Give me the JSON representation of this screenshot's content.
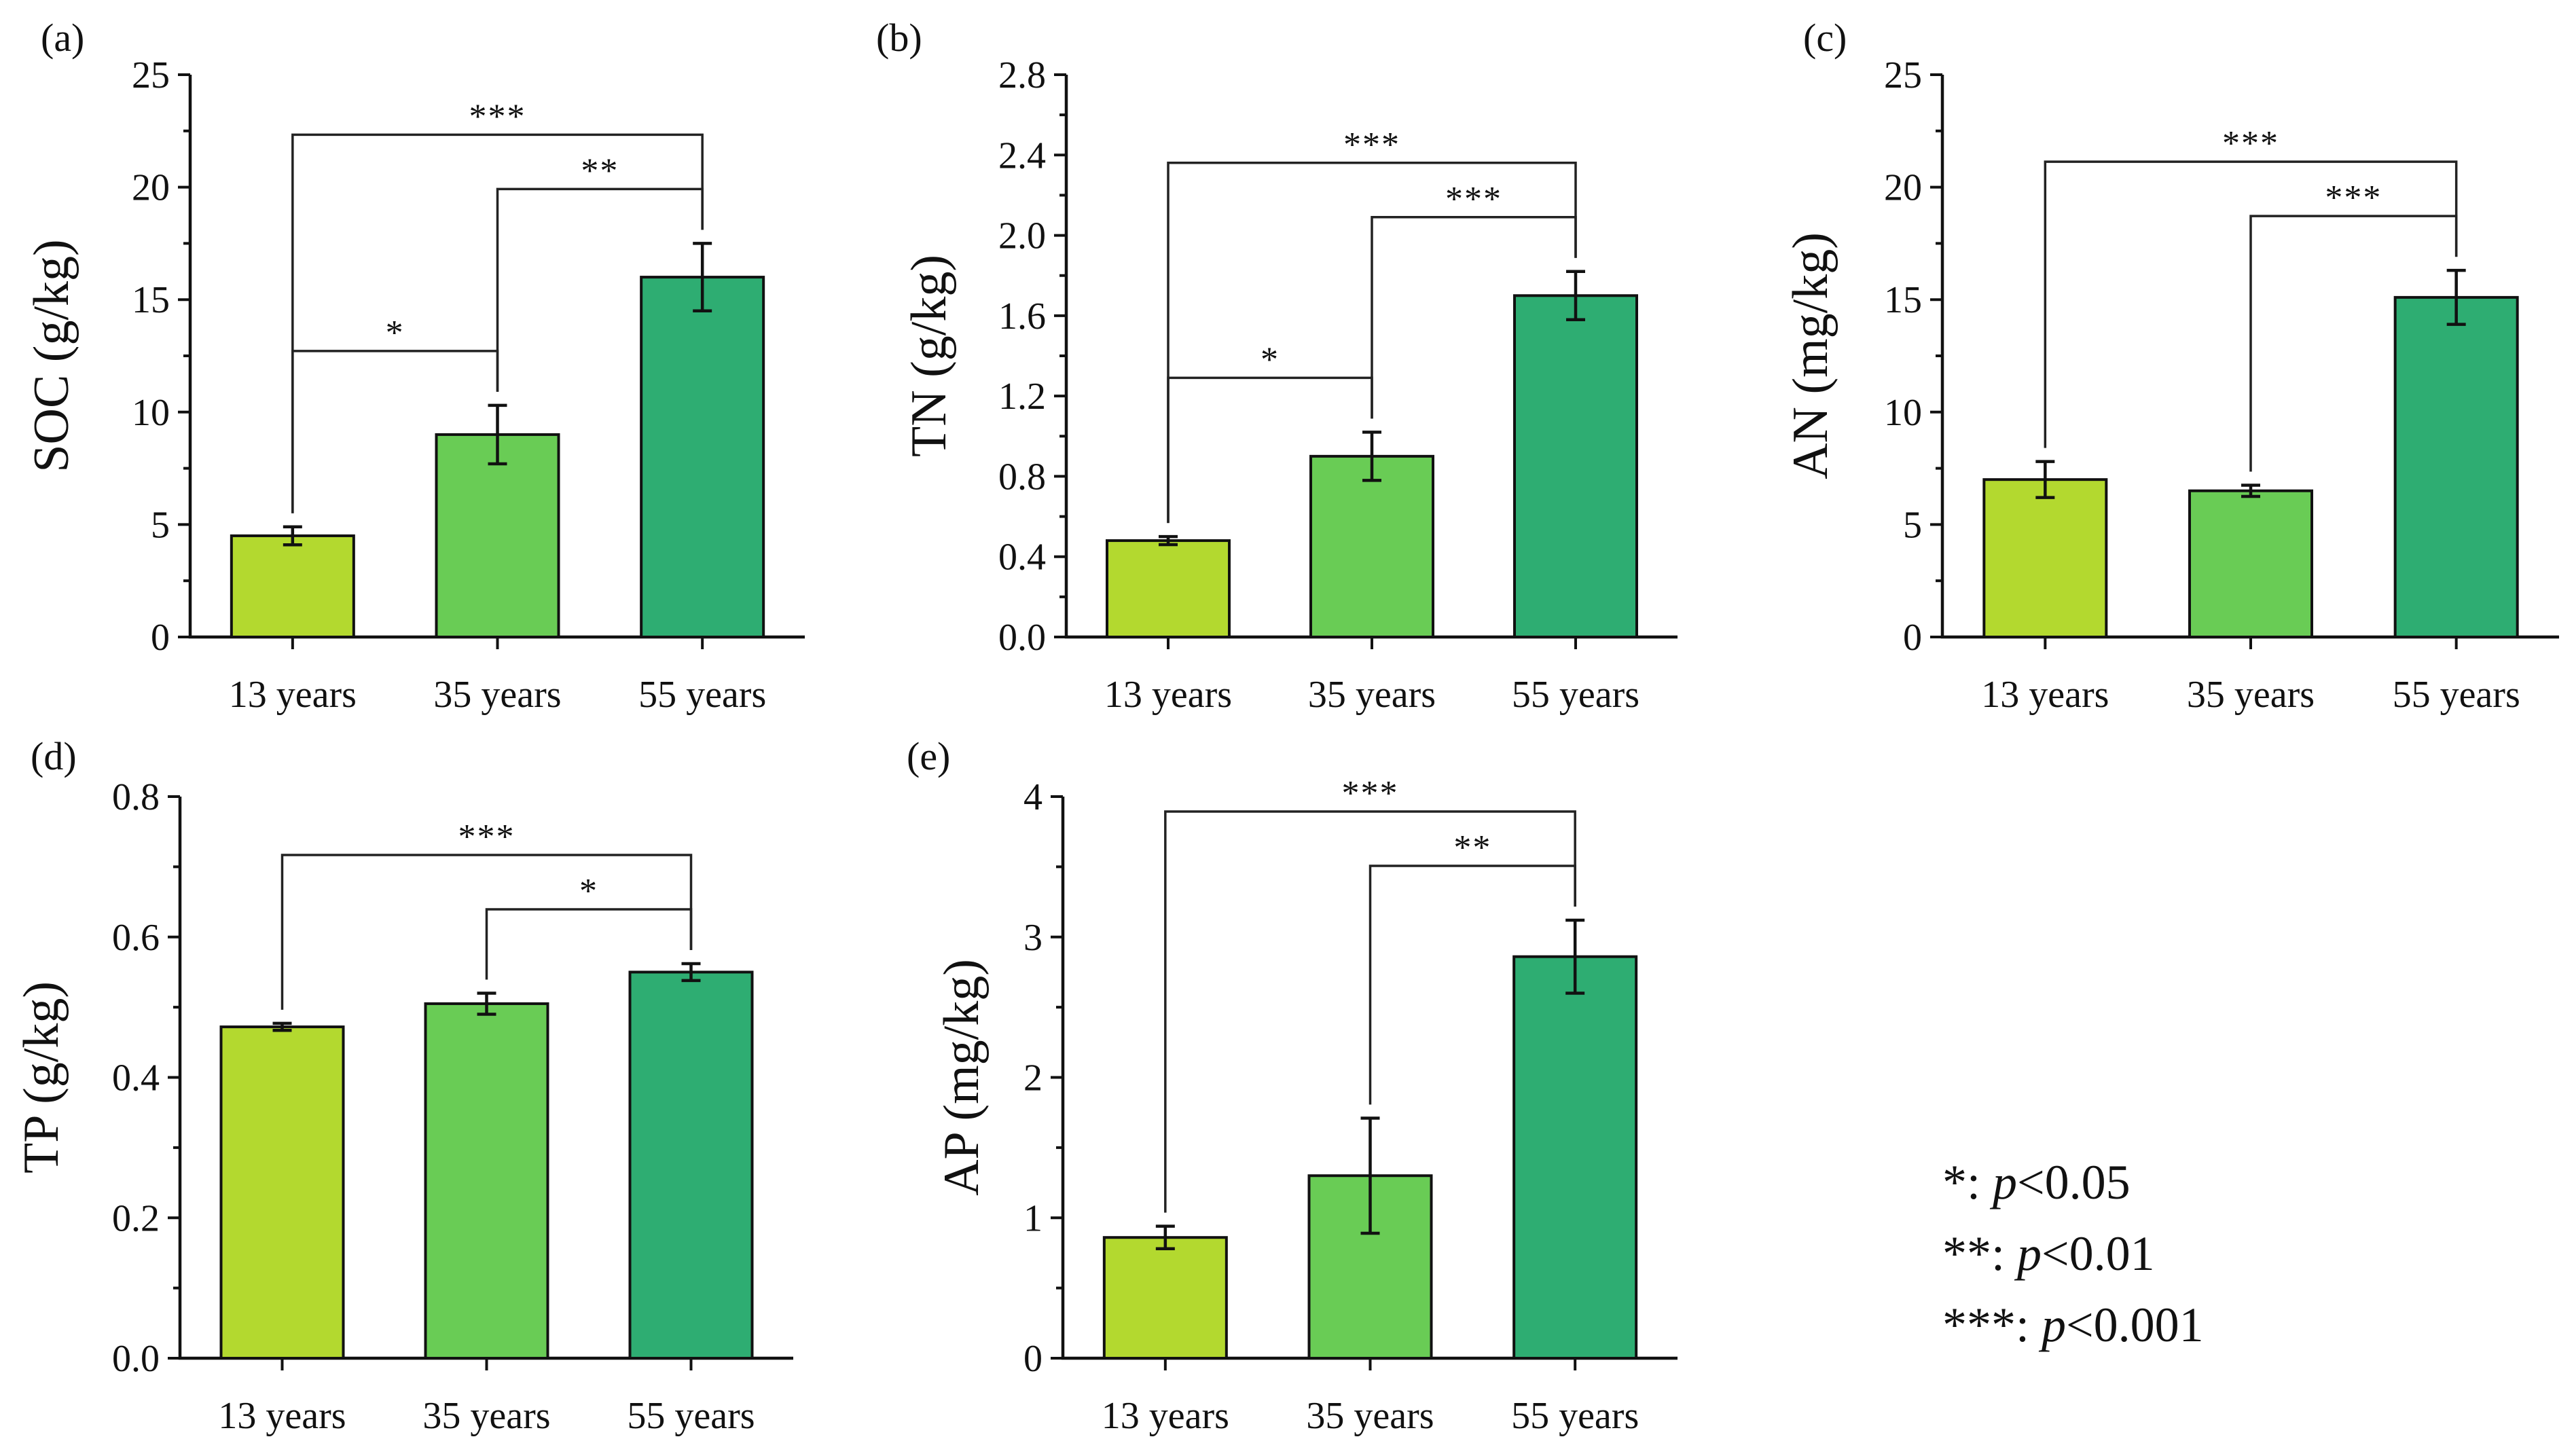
{
  "chart_data": [
    {
      "type": "bar",
      "panel": "(a)",
      "ylabel": "SOC (g/kg)",
      "categories": [
        "13 years",
        "35 years",
        "55 years"
      ],
      "values": [
        4.5,
        9.0,
        16.0
      ],
      "errors": [
        0.4,
        1.3,
        1.5
      ],
      "ylim": [
        0,
        25
      ],
      "yticks": [
        "0",
        "5",
        "10",
        "15",
        "20",
        "25"
      ],
      "brackets": [
        {
          "from": 0,
          "to": 2,
          "label": "***"
        },
        {
          "from": 1,
          "to": 2,
          "label": "**"
        },
        {
          "from": 0,
          "to": 1,
          "label": "*"
        }
      ]
    },
    {
      "type": "bar",
      "panel": "(b)",
      "ylabel": "TN (g/kg)",
      "categories": [
        "13 years",
        "35 years",
        "55 years"
      ],
      "values": [
        0.48,
        0.9,
        1.7
      ],
      "errors": [
        0.02,
        0.12,
        0.12
      ],
      "ylim": [
        0,
        2.8
      ],
      "yticks": [
        "0.0",
        "0.4",
        "0.8",
        "1.2",
        "1.6",
        "2.0",
        "2.4",
        "2.8"
      ],
      "brackets": [
        {
          "from": 0,
          "to": 2,
          "label": "***"
        },
        {
          "from": 1,
          "to": 2,
          "label": "***"
        },
        {
          "from": 0,
          "to": 1,
          "label": "*"
        }
      ]
    },
    {
      "type": "bar",
      "panel": "(c)",
      "ylabel": "AN (mg/kg)",
      "categories": [
        "13 years",
        "35 years",
        "55 years"
      ],
      "values": [
        7.0,
        6.5,
        15.1
      ],
      "errors": [
        0.8,
        0.25,
        1.2
      ],
      "ylim": [
        0,
        25
      ],
      "yticks": [
        "0",
        "5",
        "10",
        "15",
        "20",
        "25"
      ],
      "brackets": [
        {
          "from": 0,
          "to": 2,
          "label": "***"
        },
        {
          "from": 1,
          "to": 2,
          "label": "***"
        }
      ]
    },
    {
      "type": "bar",
      "panel": "(d)",
      "ylabel": "TP (g/kg)",
      "categories": [
        "13 years",
        "35 years",
        "55 years"
      ],
      "values": [
        0.472,
        0.505,
        0.55
      ],
      "errors": [
        0.005,
        0.015,
        0.012
      ],
      "ylim": [
        0,
        0.8
      ],
      "yticks": [
        "0.0",
        "0.2",
        "0.4",
        "0.6",
        "0.8"
      ],
      "brackets": [
        {
          "from": 0,
          "to": 2,
          "label": "***"
        },
        {
          "from": 1,
          "to": 2,
          "label": "*"
        }
      ]
    },
    {
      "type": "bar",
      "panel": "(e)",
      "ylabel": "AP (mg/kg)",
      "categories": [
        "13 years",
        "35 years",
        "55 years"
      ],
      "values": [
        0.86,
        1.3,
        2.86
      ],
      "errors": [
        0.08,
        0.41,
        0.26
      ],
      "ylim": [
        0,
        4
      ],
      "yticks": [
        "0",
        "1",
        "2",
        "3",
        "4"
      ],
      "brackets": [
        {
          "from": 0,
          "to": 2,
          "label": "***"
        },
        {
          "from": 1,
          "to": 2,
          "label": "**"
        }
      ]
    }
  ],
  "colors": {
    "bar_colors": [
      "#b3d92f",
      "#69cc55",
      "#2ead72"
    ]
  },
  "legend": [
    {
      "stars": "*",
      "p_symbol": "p",
      "threshold": "<0.05"
    },
    {
      "stars": "**",
      "p_symbol": "p",
      "threshold": "<0.01"
    },
    {
      "stars": "***",
      "p_symbol": "p",
      "threshold": "<0.001"
    }
  ]
}
